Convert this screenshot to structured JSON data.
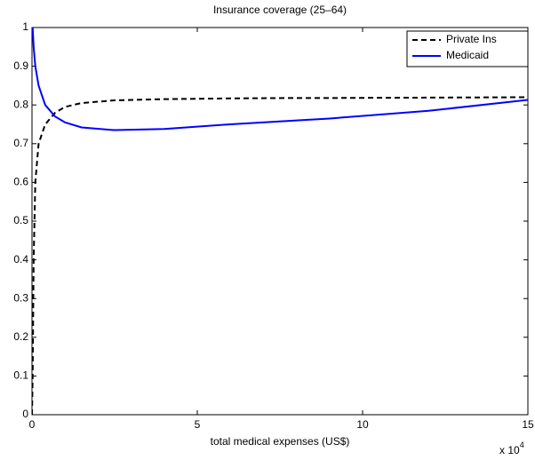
{
  "chart_data": {
    "type": "line",
    "title": "Insurance coverage (25–64)",
    "x_label": "total medical expenses (US$)",
    "x_multiplier": {
      "base": "x 10",
      "exponent": "4"
    },
    "x": [
      0,
      200,
      500,
      1000,
      2000,
      4000,
      7000,
      10000,
      15000,
      25000,
      40000,
      60000,
      80000,
      90000,
      120000,
      150000
    ],
    "series": [
      {
        "name": "Private Ins",
        "color": "#000000",
        "dash": "dashed",
        "values": [
          0,
          0.1,
          0.4,
          0.6,
          0.7,
          0.75,
          0.78,
          0.795,
          0.805,
          0.812,
          0.815,
          0.817,
          0.818,
          0.818,
          0.819,
          0.82
        ]
      },
      {
        "name": "Medicaid",
        "color": "#0000ff",
        "dash": "solid",
        "values": [
          null,
          1,
          0.95,
          0.9,
          0.85,
          0.8,
          0.77,
          0.755,
          0.742,
          0.735,
          0.738,
          0.75,
          0.76,
          0.765,
          0.785,
          0.813
        ]
      }
    ],
    "xlim": [
      0,
      150000
    ],
    "xticks": [
      0,
      {
        "value": 50000,
        "label": "5"
      },
      {
        "value": 100000,
        "label": "10"
      },
      {
        "value": 150000,
        "label": "15"
      }
    ],
    "ylim": [
      0,
      1
    ],
    "yticks": [
      0,
      0.1,
      0.2,
      0.3,
      0.4,
      0.5,
      0.6,
      0.7,
      0.8,
      0.9,
      1
    ],
    "grid": false,
    "legend": "upper right"
  }
}
